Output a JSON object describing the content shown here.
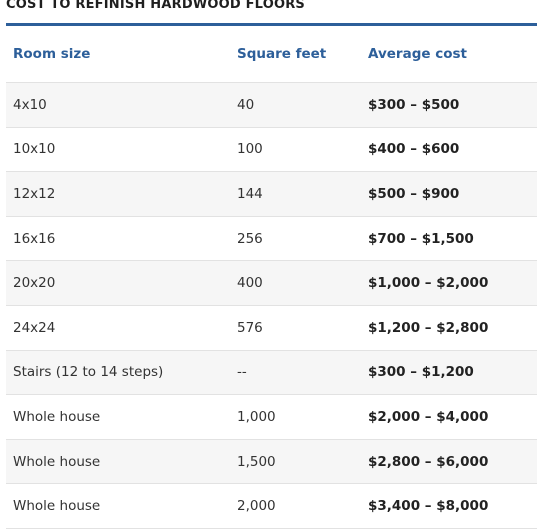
{
  "heading": "COST TO REFINISH HARDWOOD FLOORS",
  "columns": {
    "room_size": "Room size",
    "square_feet": "Square feet",
    "average_cost": "Average cost"
  },
  "rows": [
    {
      "room": "4x10",
      "sqft": "40",
      "cost": "$300 – $500"
    },
    {
      "room": "10x10",
      "sqft": "100",
      "cost": "$400 – $600"
    },
    {
      "room": "12x12",
      "sqft": "144",
      "cost": "$500 – $900"
    },
    {
      "room": "16x16",
      "sqft": "256",
      "cost": "$700 – $1,500"
    },
    {
      "room": "20x20",
      "sqft": "400",
      "cost": "$1,000 – $2,000"
    },
    {
      "room": "24x24",
      "sqft": "576",
      "cost": "$1,200 – $2,800"
    },
    {
      "room": "Stairs (12 to 14 steps)",
      "sqft": "--",
      "cost": "$300 – $1,200"
    },
    {
      "room": "Whole house",
      "sqft": "1,000",
      "cost": "$2,000 – $4,000"
    },
    {
      "room": "Whole house",
      "sqft": "1,500",
      "cost": "$2,800 – $6,000"
    },
    {
      "room": "Whole house",
      "sqft": "2,000",
      "cost": "$3,400 – $8,000"
    }
  ],
  "colors": {
    "accent": "#2d5f9a",
    "stripe": "#f6f6f6",
    "border": "#e2e2e2"
  }
}
